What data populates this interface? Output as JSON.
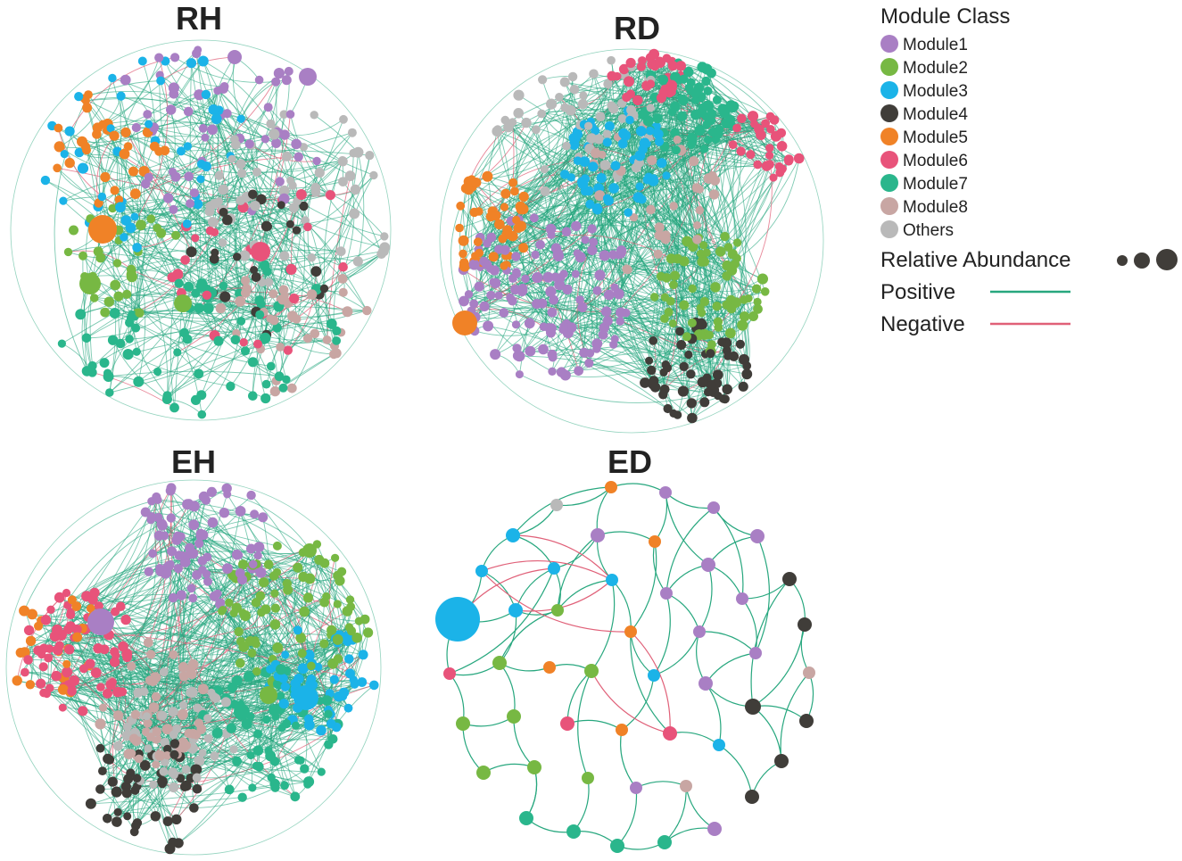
{
  "colors": {
    "module1": "#a97fc4",
    "module2": "#77b843",
    "module3": "#1bb3e8",
    "module4": "#403d39",
    "module5": "#f08227",
    "module6": "#e8537a",
    "module7": "#2ab68c",
    "module8": "#c8a6a3",
    "others": "#b9b9b9",
    "positive_edge": "#27a77e",
    "negative_edge": "#e06078"
  },
  "panels": [
    {
      "id": "rh",
      "title": "RH"
    },
    {
      "id": "rd",
      "title": "RD"
    },
    {
      "id": "eh",
      "title": "EH"
    },
    {
      "id": "ed",
      "title": "ED"
    }
  ],
  "legend": {
    "title": "Module Class",
    "items": [
      {
        "label": "Module1",
        "key": "module1"
      },
      {
        "label": "Module2",
        "key": "module2"
      },
      {
        "label": "Module3",
        "key": "module3"
      },
      {
        "label": "Module4",
        "key": "module4"
      },
      {
        "label": "Module5",
        "key": "module5"
      },
      {
        "label": "Module6",
        "key": "module6"
      },
      {
        "label": "Module7",
        "key": "module7"
      },
      {
        "label": "Module8",
        "key": "module8"
      },
      {
        "label": "Others",
        "key": "others"
      }
    ],
    "abundance_label": "Relative Abundance",
    "positive_label": "Positive",
    "negative_label": "Negative"
  }
}
